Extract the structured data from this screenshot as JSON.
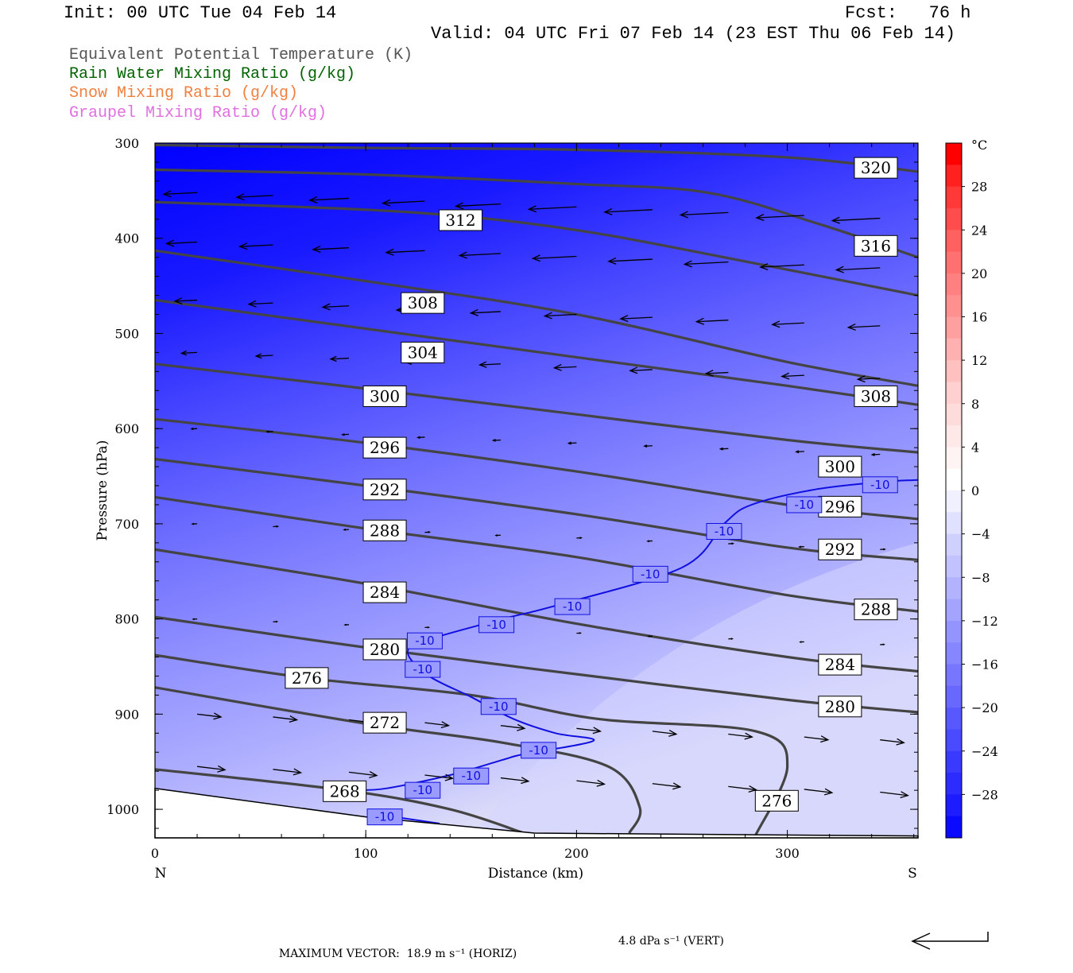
{
  "header": {
    "init": "Init: 00 UTC Tue 04 Feb 14",
    "fcst": "Fcst:   76 h",
    "valid": "Valid: 04 UTC Fri 07 Feb 14 (23 EST Thu 06 Feb 14)"
  },
  "legend": [
    {
      "text": "Equivalent Potential Temperature (K)",
      "color": "#555555"
    },
    {
      "text": "Rain Water Mixing Ratio (g/kg)",
      "color": "#006400"
    },
    {
      "text": "Snow Mixing Ratio (g/kg)",
      "color": "#F08040"
    },
    {
      "text": "Graupel Mixing Ratio (g/kg)",
      "color": "#E070E0"
    }
  ],
  "footer": {
    "max_vector_label": "MAXIMUM VECTOR:",
    "horiz": "18.9 m s⁻¹ (HORIZ)",
    "vert": "4.8 dPa s⁻¹ (VERT)"
  },
  "chart_data": {
    "type": "cross-section",
    "xlabel": "Distance (km)",
    "ylabel": "Pressure (hPa)",
    "x_left_label": "N",
    "x_right_label": "S",
    "xlim": [
      0,
      362
    ],
    "ylim": [
      300,
      1030
    ],
    "x_ticks": [
      0,
      100,
      200,
      300
    ],
    "y_ticks": [
      300,
      400,
      500,
      600,
      700,
      800,
      900,
      1000
    ],
    "colorbar": {
      "unit": "°C",
      "labels": [
        28,
        24,
        20,
        16,
        12,
        8,
        4,
        0,
        -4,
        -8,
        -12,
        -16,
        -20,
        -24,
        -28
      ],
      "levels": [
        32,
        30,
        28,
        26,
        24,
        22,
        20,
        18,
        16,
        14,
        12,
        10,
        8,
        6,
        4,
        2,
        0,
        -2,
        -4,
        -6,
        -8,
        -10,
        -12,
        -14,
        -16,
        -18,
        -20,
        -22,
        -24,
        -26,
        -28,
        -30,
        -32
      ],
      "colors": [
        "#ff0000",
        "#ff2020",
        "#ff3838",
        "#ff4c4c",
        "#ff6060",
        "#ff7070",
        "#ff8080",
        "#ff9090",
        "#ffa0a0",
        "#ffb0b0",
        "#ffc0c0",
        "#ffd0d0",
        "#ffdcdc",
        "#ffe8e8",
        "#fff4f4",
        "#ffffff",
        "#f0f0ff",
        "#e0e0ff",
        "#d0d0ff",
        "#c2c2ff",
        "#b2b2ff",
        "#a4a4ff",
        "#9494ff",
        "#8686ff",
        "#7676ff",
        "#6868ff",
        "#5858ff",
        "#4a4aff",
        "#3a3aff",
        "#2c2cff",
        "#1c1cff",
        "#0a0aff"
      ]
    },
    "theta_e_contours": [
      {
        "value": 320,
        "points": [
          [
            0,
            302
          ],
          [
            100,
            305
          ],
          [
            200,
            307
          ],
          [
            300,
            315
          ],
          [
            362,
            330
          ]
        ],
        "labels": [
          [
            342,
            326
          ]
        ]
      },
      {
        "value": 316,
        "points": [
          [
            0,
            328
          ],
          [
            100,
            333
          ],
          [
            200,
            343
          ],
          [
            262,
            352
          ],
          [
            315,
            385
          ],
          [
            362,
            420
          ]
        ],
        "labels": [
          [
            342,
            408
          ]
        ]
      },
      {
        "value": 312,
        "points": [
          [
            0,
            362
          ],
          [
            100,
            370
          ],
          [
            160,
            380
          ],
          [
            210,
            395
          ],
          [
            270,
            420
          ],
          [
            362,
            460
          ]
        ],
        "labels": [
          [
            145,
            381
          ]
        ]
      },
      {
        "value": 308,
        "points": [
          [
            0,
            413
          ],
          [
            100,
            445
          ],
          [
            200,
            480
          ],
          [
            300,
            530
          ],
          [
            362,
            555
          ]
        ],
        "labels": [
          [
            127,
            468
          ],
          [
            342,
            566
          ]
        ]
      },
      {
        "value": 304,
        "points": [
          [
            0,
            465
          ],
          [
            100,
            495
          ],
          [
            200,
            525
          ],
          [
            300,
            555
          ],
          [
            362,
            575
          ]
        ],
        "labels": [
          [
            127,
            520
          ]
        ]
      },
      {
        "value": 300,
        "points": [
          [
            0,
            532
          ],
          [
            100,
            558
          ],
          [
            200,
            585
          ],
          [
            300,
            612
          ],
          [
            362,
            625
          ]
        ],
        "labels": [
          [
            109,
            566
          ],
          [
            325,
            640
          ]
        ]
      },
      {
        "value": 296,
        "points": [
          [
            0,
            590
          ],
          [
            100,
            615
          ],
          [
            200,
            645
          ],
          [
            300,
            680
          ],
          [
            362,
            695
          ]
        ],
        "labels": [
          [
            109,
            620
          ],
          [
            325,
            682
          ]
        ]
      },
      {
        "value": 292,
        "points": [
          [
            0,
            632
          ],
          [
            100,
            660
          ],
          [
            200,
            690
          ],
          [
            300,
            725
          ],
          [
            362,
            738
          ]
        ],
        "labels": [
          [
            109,
            664
          ],
          [
            325,
            727
          ]
        ]
      },
      {
        "value": 288,
        "points": [
          [
            0,
            672
          ],
          [
            100,
            705
          ],
          [
            200,
            735
          ],
          [
            300,
            775
          ],
          [
            362,
            792
          ]
        ],
        "labels": [
          [
            109,
            707
          ],
          [
            342,
            790
          ]
        ]
      },
      {
        "value": 284,
        "points": [
          [
            0,
            727
          ],
          [
            100,
            763
          ],
          [
            200,
            805
          ],
          [
            300,
            840
          ],
          [
            362,
            855
          ]
        ],
        "labels": [
          [
            109,
            772
          ],
          [
            325,
            848
          ]
        ]
      },
      {
        "value": 280,
        "points": [
          [
            0,
            798
          ],
          [
            100,
            830
          ],
          [
            200,
            858
          ],
          [
            300,
            885
          ],
          [
            362,
            898
          ]
        ],
        "labels": [
          [
            109,
            832
          ],
          [
            325,
            892
          ]
        ]
      },
      {
        "value": 276,
        "points": [
          [
            0,
            838
          ],
          [
            72,
            862
          ],
          [
            150,
            880
          ],
          [
            210,
            905
          ],
          [
            285,
            918
          ],
          [
            300,
            955
          ],
          [
            285,
            1027
          ]
        ],
        "labels": [
          [
            72,
            862
          ],
          [
            295,
            991
          ]
        ]
      },
      {
        "value": 272,
        "points": [
          [
            0,
            872
          ],
          [
            100,
            910
          ],
          [
            165,
            930
          ],
          [
            215,
            955
          ],
          [
            230,
            998
          ],
          [
            225,
            1025
          ]
        ],
        "labels": [
          [
            109,
            909
          ]
        ]
      },
      {
        "value": 268,
        "points": [
          [
            0,
            958
          ],
          [
            90,
            980
          ],
          [
            140,
            1000
          ],
          [
            175,
            1025
          ]
        ],
        "labels": [
          [
            90,
            981
          ]
        ]
      }
    ],
    "temp_contours": [
      {
        "value": -10,
        "points": [
          [
            362,
            654
          ],
          [
            345,
            656
          ],
          [
            313,
            664
          ],
          [
            283,
            680
          ],
          [
            270,
            700
          ],
          [
            250,
            746
          ],
          [
            190,
            786
          ],
          [
            165,
            800
          ],
          [
            128,
            823
          ],
          [
            120,
            836
          ],
          [
            130,
            860
          ],
          [
            150,
            882
          ],
          [
            170,
            905
          ],
          [
            190,
            920
          ],
          [
            208,
            928
          ],
          [
            175,
            942
          ],
          [
            165,
            948
          ],
          [
            140,
            964
          ],
          [
            110,
            978
          ],
          [
            95,
            980
          ]
        ],
        "labels": [
          [
            344,
            659
          ],
          [
            308,
            680
          ],
          [
            270,
            708
          ],
          [
            235,
            753
          ],
          [
            198,
            787
          ],
          [
            162,
            806
          ],
          [
            128,
            823
          ],
          [
            127,
            853
          ],
          [
            163,
            892
          ],
          [
            182,
            938
          ],
          [
            150,
            965
          ],
          [
            127,
            980
          ]
        ]
      },
      {
        "value": -10,
        "points": [
          [
            105,
            1005
          ],
          [
            120,
            1010
          ],
          [
            135,
            1015
          ]
        ],
        "labels": [
          [
            109,
            1008
          ]
        ]
      }
    ],
    "wind_max_vector": {
      "horiz": 18.9,
      "vert": 4.8
    }
  }
}
